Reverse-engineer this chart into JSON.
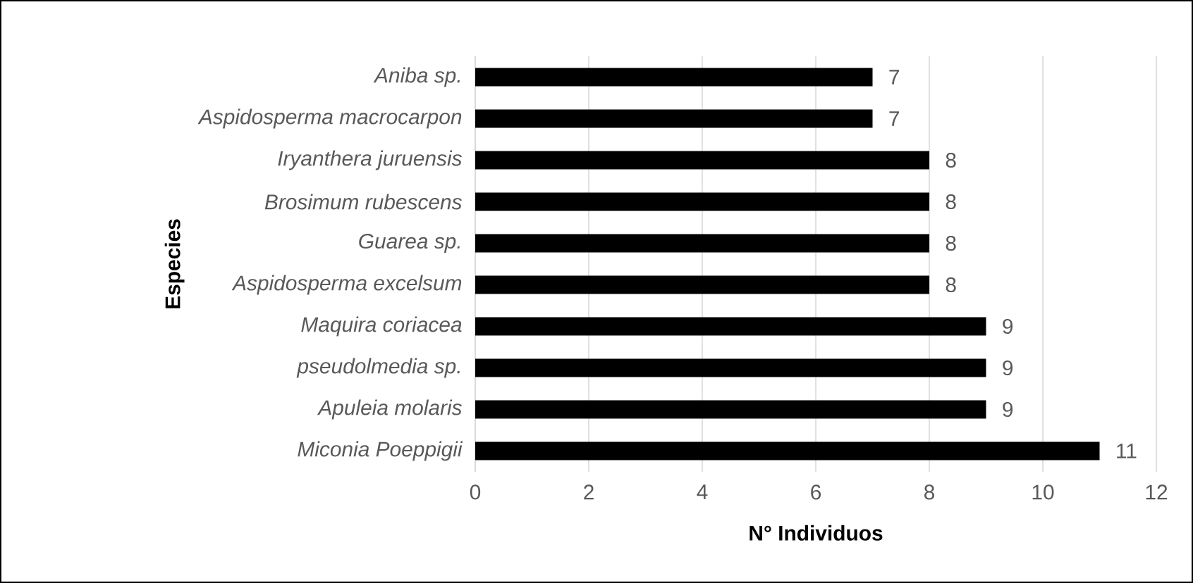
{
  "chart_data": {
    "type": "bar",
    "orientation": "horizontal",
    "xlabel": "N° Individuos",
    "ylabel": "Especies",
    "categories": [
      "Aniba sp.",
      "Aspidosperma macrocarpon",
      "Iryanthera juruensis",
      "Brosimum rubescens",
      "Guarea sp.",
      "Aspidosperma excelsum",
      "Maquira coriacea",
      "pseudolmedia sp.",
      "Apuleia molaris",
      "Miconia Poeppigii"
    ],
    "values": [
      7,
      7,
      8,
      8,
      8,
      8,
      9,
      9,
      9,
      11
    ],
    "color": "#000000",
    "xlim": [
      0,
      12
    ],
    "xticks": [
      0,
      2,
      4,
      6,
      8,
      10,
      12
    ],
    "grid": "x",
    "data_labels": true
  }
}
